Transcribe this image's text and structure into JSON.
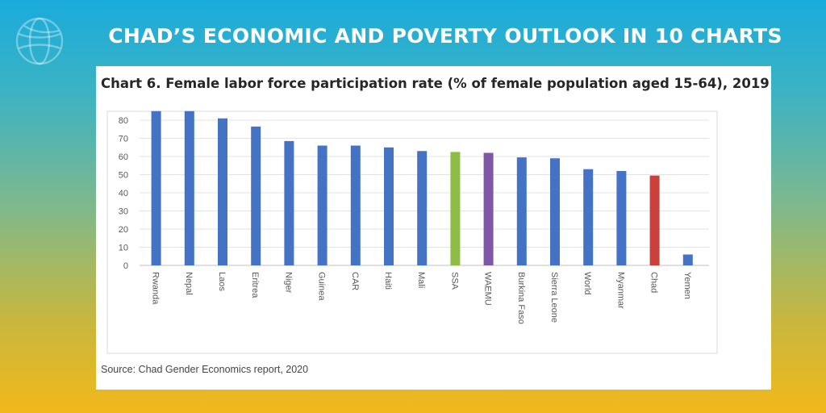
{
  "banner": {
    "title": "CHAD’S ECONOMIC AND POVERTY OUTLOOK IN 10 CHARTS"
  },
  "logo": {
    "icon": "globe-icon"
  },
  "source_note": "Source: Chad Gender Economics report, 2020",
  "colors": {
    "default_bar": "#4472c4",
    "ssa_bar": "#8fbc44",
    "waemu_bar": "#7e57a6",
    "chad_bar": "#c9413b"
  },
  "chart_data": {
    "type": "bar",
    "title": "Chart 6. Female labor force participation rate (% of female population aged 15-64), 2019",
    "categories": [
      "Rwanda",
      "Nepal",
      "Laos",
      "Eritrea",
      "Niger",
      "Guinea",
      "CAR",
      "Haiti",
      "Mali",
      "SSA",
      "WAEMU",
      "Burkina Faso",
      "Sierra Leone",
      "World",
      "Myanmar",
      "Chad",
      "Yemen"
    ],
    "values": [
      85,
      85,
      81,
      76.5,
      68.5,
      66,
      66,
      65,
      63,
      62.5,
      62,
      59.5,
      59,
      53,
      52,
      49.5,
      6
    ],
    "bar_colors": [
      "#4472c4",
      "#4472c4",
      "#4472c4",
      "#4472c4",
      "#4472c4",
      "#4472c4",
      "#4472c4",
      "#4472c4",
      "#4472c4",
      "#8fbc44",
      "#7e57a6",
      "#4472c4",
      "#4472c4",
      "#4472c4",
      "#4472c4",
      "#c9413b",
      "#4472c4"
    ],
    "yticks": [
      "0",
      "10",
      "20",
      "30",
      "40",
      "50",
      "60",
      "70",
      "80"
    ],
    "ylim": [
      0,
      90
    ],
    "xlabel": "",
    "ylabel": "",
    "grid": true,
    "legend": "none"
  }
}
